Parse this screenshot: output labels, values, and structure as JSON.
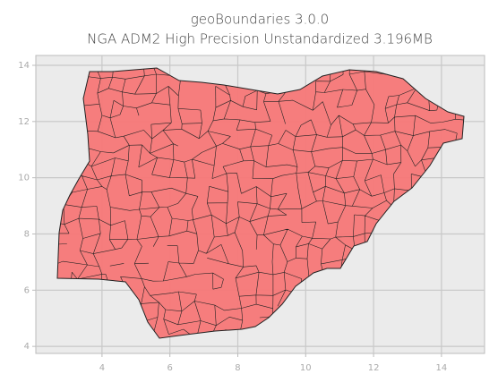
{
  "chart_data": {
    "type": "map",
    "title": "geoBoundaries 3.0.0",
    "subtitle": "NGA ADM2 High Precision Unstandardized 3.196MB",
    "xlim": [
      2.05,
      15.27
    ],
    "ylim": [
      3.75,
      14.35
    ],
    "xticks": [
      4,
      6,
      8,
      10,
      12,
      14
    ],
    "yticks": [
      4,
      6,
      8,
      10,
      12,
      14
    ],
    "grid": true,
    "color": "#f77777"
  }
}
